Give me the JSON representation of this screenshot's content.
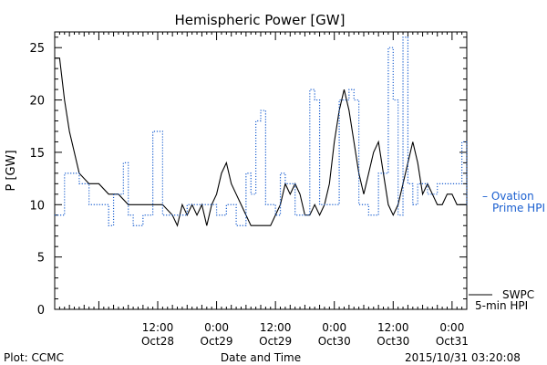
{
  "colors": {
    "swpc": "#000000",
    "ovation": "#1a5fd0",
    "axis": "#000000"
  },
  "chart_data": {
    "type": "line",
    "title": "Hemispheric Power [GW]",
    "xlabel": "Date and Time",
    "ylabel": "P [GW]",
    "ylim": [
      0,
      26.5
    ],
    "yticks": [
      0,
      5,
      10,
      15,
      20,
      25
    ],
    "xlim": [
      "2015-10-27T15:00",
      "2015-10-31T03:00"
    ],
    "xticks": [
      {
        "t": "2015-10-28T12:00",
        "time": "12:00",
        "date": "Oct28"
      },
      {
        "t": "2015-10-29T00:00",
        "time": "0:00",
        "date": "Oct29"
      },
      {
        "t": "2015-10-29T12:00",
        "time": "12:00",
        "date": "Oct29"
      },
      {
        "t": "2015-10-30T00:00",
        "time": "0:00",
        "date": "Oct30"
      },
      {
        "t": "2015-10-30T12:00",
        "time": "12:00",
        "date": "Oct30"
      },
      {
        "t": "2015-10-31T00:00",
        "time": "0:00",
        "date": "Oct31"
      }
    ],
    "footer_left": "Plot: CCMC",
    "footer_right": "2015/10/31 03:20:08",
    "series": [
      {
        "name": "SWPC 5-min HPI",
        "legend_lines": [
          "SWPC",
          "5-min HPI"
        ],
        "style": "solid",
        "points": [
          [
            "2015-10-27T15:00",
            24
          ],
          [
            "2015-10-27T16:00",
            24
          ],
          [
            "2015-10-27T17:00",
            20
          ],
          [
            "2015-10-27T18:00",
            17
          ],
          [
            "2015-10-27T19:00",
            15
          ],
          [
            "2015-10-27T20:00",
            13
          ],
          [
            "2015-10-27T22:00",
            12
          ],
          [
            "2015-10-28T00:00",
            12
          ],
          [
            "2015-10-28T02:00",
            11
          ],
          [
            "2015-10-28T04:00",
            11
          ],
          [
            "2015-10-28T06:00",
            10
          ],
          [
            "2015-10-28T08:00",
            10
          ],
          [
            "2015-10-28T10:00",
            10
          ],
          [
            "2015-10-28T13:00",
            10
          ],
          [
            "2015-10-28T15:00",
            9
          ],
          [
            "2015-10-28T16:00",
            8
          ],
          [
            "2015-10-28T17:00",
            10
          ],
          [
            "2015-10-28T18:00",
            9
          ],
          [
            "2015-10-28T19:00",
            10
          ],
          [
            "2015-10-28T20:00",
            9
          ],
          [
            "2015-10-28T21:00",
            10
          ],
          [
            "2015-10-28T22:00",
            8
          ],
          [
            "2015-10-28T23:00",
            10
          ],
          [
            "2015-10-29T00:00",
            11
          ],
          [
            "2015-10-29T01:00",
            13
          ],
          [
            "2015-10-29T02:00",
            14
          ],
          [
            "2015-10-29T03:00",
            12
          ],
          [
            "2015-10-29T04:00",
            11
          ],
          [
            "2015-10-29T05:00",
            10
          ],
          [
            "2015-10-29T06:00",
            9
          ],
          [
            "2015-10-29T07:00",
            8
          ],
          [
            "2015-10-29T09:00",
            8
          ],
          [
            "2015-10-29T11:00",
            8
          ],
          [
            "2015-10-29T12:00",
            9
          ],
          [
            "2015-10-29T13:00",
            10
          ],
          [
            "2015-10-29T14:00",
            12
          ],
          [
            "2015-10-29T15:00",
            11
          ],
          [
            "2015-10-29T16:00",
            12
          ],
          [
            "2015-10-29T17:00",
            11
          ],
          [
            "2015-10-29T18:00",
            9
          ],
          [
            "2015-10-29T19:00",
            9
          ],
          [
            "2015-10-29T20:00",
            10
          ],
          [
            "2015-10-29T21:00",
            9
          ],
          [
            "2015-10-29T22:00",
            10
          ],
          [
            "2015-10-29T23:00",
            12
          ],
          [
            "2015-10-30T00:00",
            16
          ],
          [
            "2015-10-30T01:00",
            19
          ],
          [
            "2015-10-30T02:00",
            21
          ],
          [
            "2015-10-30T03:00",
            19
          ],
          [
            "2015-10-30T04:00",
            16
          ],
          [
            "2015-10-30T05:00",
            13
          ],
          [
            "2015-10-30T06:00",
            11
          ],
          [
            "2015-10-30T07:00",
            13
          ],
          [
            "2015-10-30T08:00",
            15
          ],
          [
            "2015-10-30T09:00",
            16
          ],
          [
            "2015-10-30T10:00",
            13
          ],
          [
            "2015-10-30T11:00",
            10
          ],
          [
            "2015-10-30T12:00",
            9
          ],
          [
            "2015-10-30T13:00",
            10
          ],
          [
            "2015-10-30T14:00",
            12
          ],
          [
            "2015-10-30T15:00",
            14
          ],
          [
            "2015-10-30T16:00",
            16
          ],
          [
            "2015-10-30T17:00",
            14
          ],
          [
            "2015-10-30T18:00",
            11
          ],
          [
            "2015-10-30T19:00",
            12
          ],
          [
            "2015-10-30T20:00",
            11
          ],
          [
            "2015-10-30T21:00",
            10
          ],
          [
            "2015-10-30T22:00",
            10
          ],
          [
            "2015-10-30T23:00",
            11
          ],
          [
            "2015-10-31T00:00",
            11
          ],
          [
            "2015-10-31T01:00",
            10
          ],
          [
            "2015-10-31T03:00",
            10
          ]
        ]
      },
      {
        "name": "Ovation Prime HPI",
        "legend_lines": [
          "– Ovation",
          "Prime HPI"
        ],
        "style": "dotted",
        "points": [
          [
            "2015-10-27T15:00",
            9
          ],
          [
            "2015-10-27T16:00",
            9
          ],
          [
            "2015-10-27T17:00",
            13
          ],
          [
            "2015-10-27T19:00",
            13
          ],
          [
            "2015-10-27T20:00",
            12
          ],
          [
            "2015-10-27T22:00",
            10
          ],
          [
            "2015-10-28T01:00",
            10
          ],
          [
            "2015-10-28T02:00",
            8
          ],
          [
            "2015-10-28T03:00",
            11
          ],
          [
            "2015-10-28T05:00",
            14
          ],
          [
            "2015-10-28T06:00",
            9
          ],
          [
            "2015-10-28T07:00",
            8
          ],
          [
            "2015-10-28T09:00",
            9
          ],
          [
            "2015-10-28T11:00",
            17
          ],
          [
            "2015-10-28T13:00",
            9
          ],
          [
            "2015-10-28T15:00",
            9
          ],
          [
            "2015-10-28T18:00",
            10
          ],
          [
            "2015-10-29T00:00",
            9
          ],
          [
            "2015-10-29T02:00",
            10
          ],
          [
            "2015-10-29T04:00",
            8
          ],
          [
            "2015-10-29T06:00",
            13
          ],
          [
            "2015-10-29T07:00",
            11
          ],
          [
            "2015-10-29T08:00",
            18
          ],
          [
            "2015-10-29T09:00",
            19
          ],
          [
            "2015-10-29T10:00",
            10
          ],
          [
            "2015-10-29T12:00",
            9
          ],
          [
            "2015-10-29T13:00",
            13
          ],
          [
            "2015-10-29T14:00",
            12
          ],
          [
            "2015-10-29T16:00",
            9
          ],
          [
            "2015-10-29T19:00",
            21
          ],
          [
            "2015-10-29T20:00",
            20
          ],
          [
            "2015-10-29T21:00",
            10
          ],
          [
            "2015-10-29T23:00",
            10
          ],
          [
            "2015-10-30T01:00",
            20
          ],
          [
            "2015-10-30T02:00",
            20
          ],
          [
            "2015-10-30T03:00",
            21
          ],
          [
            "2015-10-30T04:00",
            20
          ],
          [
            "2015-10-30T05:00",
            10
          ],
          [
            "2015-10-30T07:00",
            9
          ],
          [
            "2015-10-30T09:00",
            13
          ],
          [
            "2015-10-30T11:00",
            25
          ],
          [
            "2015-10-30T12:00",
            20
          ],
          [
            "2015-10-30T13:00",
            9
          ],
          [
            "2015-10-30T14:00",
            26
          ],
          [
            "2015-10-30T15:00",
            12
          ],
          [
            "2015-10-30T16:00",
            10
          ],
          [
            "2015-10-30T17:00",
            12
          ],
          [
            "2015-10-30T19:00",
            11
          ],
          [
            "2015-10-30T21:00",
            12
          ],
          [
            "2015-10-30T23:00",
            12
          ],
          [
            "2015-10-31T01:00",
            12
          ],
          [
            "2015-10-31T02:00",
            16
          ],
          [
            "2015-10-31T03:00",
            10
          ]
        ]
      }
    ]
  }
}
